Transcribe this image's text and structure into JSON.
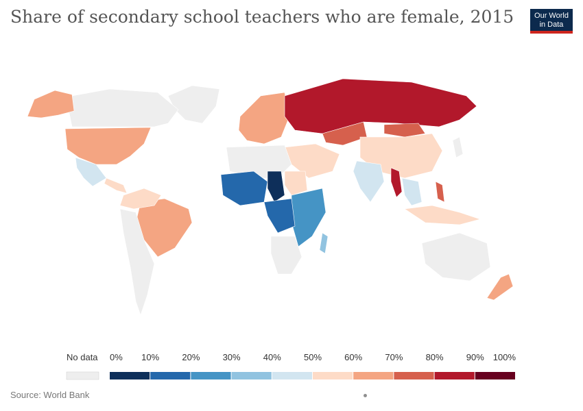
{
  "header": {
    "title": "Share of secondary school teachers who are female, 2015",
    "logo_line1": "Our World",
    "logo_line2": "in Data"
  },
  "footer": {
    "source": "Source: World Bank"
  },
  "legend": {
    "no_data_label": "No data",
    "no_data_color": "#eeeeee",
    "ticks": [
      "0%",
      "10%",
      "20%",
      "30%",
      "40%",
      "50%",
      "60%",
      "70%",
      "80%",
      "90%",
      "100%"
    ],
    "bins": [
      {
        "min": 0,
        "max": 10,
        "color": "#0e2f5a"
      },
      {
        "min": 10,
        "max": 20,
        "color": "#2468ab"
      },
      {
        "min": 20,
        "max": 30,
        "color": "#4594c5"
      },
      {
        "min": 30,
        "max": 40,
        "color": "#91c3e0"
      },
      {
        "min": 40,
        "max": 50,
        "color": "#d2e5f0"
      },
      {
        "min": 50,
        "max": 60,
        "color": "#fddbc7"
      },
      {
        "min": 60,
        "max": 70,
        "color": "#f4a582"
      },
      {
        "min": 70,
        "max": 80,
        "color": "#d6604d"
      },
      {
        "min": 80,
        "max": 90,
        "color": "#b2182b"
      },
      {
        "min": 90,
        "max": 100,
        "color": "#67001f"
      }
    ]
  },
  "map_colors": {
    "russia": "#b2182b",
    "kazakhstan": "#d6604d",
    "mongolia": "#d6604d",
    "china": "#fddbc7",
    "usa": "#f4a582",
    "canada": "#eeeeee",
    "alaska": "#f4a582",
    "greenland": "#eeeeee",
    "mexico": "#d2e5f0",
    "brazil": "#f4a582",
    "australia": "#eeeeee",
    "india": "#d2e5f0",
    "myanmar": "#b2182b",
    "philippines": "#d6604d",
    "nz": "#f4a582",
    "west_africa": "#2468ab",
    "chad": "#0e2f5a",
    "sahara": "#eeeeee",
    "east_africa": "#4594c5",
    "south_africa": "#eeeeee"
  }
}
